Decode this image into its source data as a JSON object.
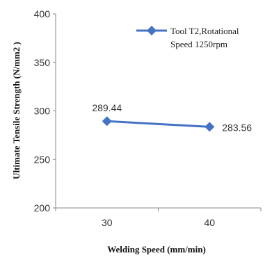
{
  "chart_data": {
    "type": "line",
    "x": [
      30,
      40
    ],
    "categories": [
      "30",
      "40"
    ],
    "series": [
      {
        "name": "Tool T2,Rotational Speed 1250rpm",
        "legend_lines": [
          "Tool T2,Rotational",
          "Speed 1250rpm"
        ],
        "values": [
          289.44,
          283.56
        ],
        "data_labels": [
          "289.44",
          "283.56"
        ],
        "color": "#4472C4"
      }
    ],
    "xlabel": "Welding Speed (mm/min)",
    "ylabel": "Ultimate Tensile Strength (N/mm2 )",
    "ylim": [
      200,
      400
    ],
    "yticks": [
      200,
      250,
      300,
      350,
      400
    ],
    "grid": false,
    "legend_position": "top-right"
  }
}
